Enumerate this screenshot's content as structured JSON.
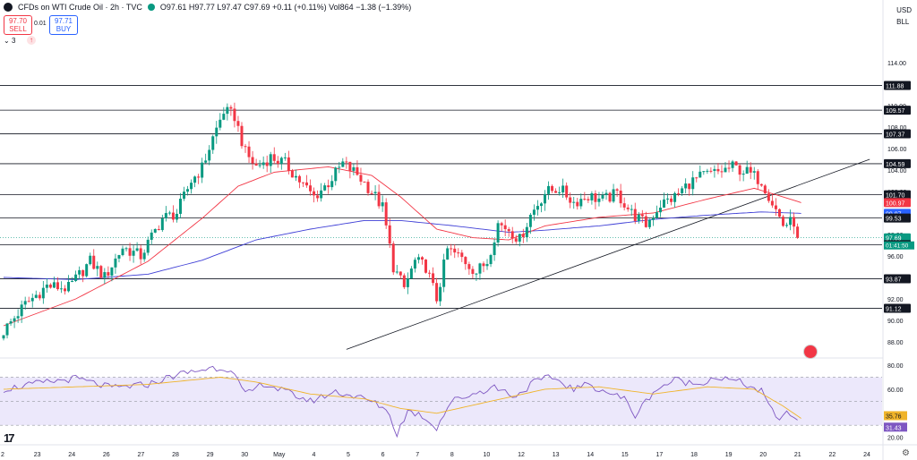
{
  "header": {
    "symbol": "CFDs on WTI Crude Oil · 2h · TVC",
    "ohlc": "O97.61 H97.77 L97.47 C97.69 +0.11 (+0.11%) Vol864 −1.38 (−1.39%)",
    "sell_price": "97.70",
    "sell_label": "SELL",
    "buy_price": "97.71",
    "buy_label": "BUY",
    "spread": "0.01",
    "indicator_count": "3",
    "currency": "USD",
    "unit": "BLL"
  },
  "colors": {
    "up": "#089981",
    "down": "#f23645",
    "ma_fast": "#f23645",
    "ma_slow": "#3f3fd6",
    "rsi": "#7e57c2",
    "rsi_ma": "#f0b42a",
    "band": "#ece8fb"
  },
  "chart_data": [
    {
      "type": "candlestick",
      "title": "",
      "ylim": [
        86.5,
        117.0
      ],
      "yticks": [
        "114.00",
        "112.00",
        "110.00",
        "108.00",
        "106.00",
        "104.00",
        "102.00",
        "100.00",
        "98.00",
        "96.00",
        "94.00",
        "92.00",
        "90.00",
        "88.00"
      ],
      "xticks": [
        "2",
        "23",
        "24",
        "26",
        "27",
        "28",
        "29",
        "30",
        "May",
        "4",
        "5",
        "6",
        "7",
        "8",
        "10",
        "12",
        "13",
        "14",
        "15",
        "17",
        "18",
        "19",
        "20",
        "21",
        "22",
        "24"
      ],
      "horizontal_levels": [
        111.88,
        109.57,
        107.37,
        104.59,
        101.7,
        99.53,
        97.05,
        93.87,
        91.12
      ],
      "price_labels": [
        {
          "value": 111.88,
          "text": "111.88",
          "style": "dark"
        },
        {
          "value": 109.57,
          "text": "109.57",
          "style": "dark"
        },
        {
          "value": 107.37,
          "text": "107.37",
          "style": "dark"
        },
        {
          "value": 104.59,
          "text": "104.59",
          "style": "dark"
        },
        {
          "value": 101.7,
          "text": "101.70",
          "style": "dark"
        },
        {
          "value": 100.97,
          "text": "100.97",
          "style": "red"
        },
        {
          "value": 99.97,
          "text": "99.97",
          "style": "blue"
        },
        {
          "value": 99.53,
          "text": "99.53",
          "style": "dark"
        },
        {
          "value": 97.69,
          "text": "97.69",
          "style": "teal"
        },
        {
          "value": 97.05,
          "text": "97.05",
          "style": "dark"
        },
        {
          "value": 93.87,
          "text": "93.87",
          "style": "dark"
        },
        {
          "value": 91.12,
          "text": "91.12",
          "style": "dark"
        }
      ],
      "countdown": "01:41:50",
      "trendline": {
        "from": {
          "bar": 95,
          "price": 87.3
        },
        "to": {
          "bar": 240,
          "price": 105.0
        }
      },
      "bars": 221,
      "close_path": [
        [
          0,
          89.0
        ],
        [
          6,
          91.5
        ],
        [
          12,
          93.2
        ],
        [
          18,
          93.0
        ],
        [
          24,
          95.5
        ],
        [
          28,
          94.0
        ],
        [
          33,
          96.8
        ],
        [
          38,
          96.0
        ],
        [
          44,
          99.5
        ],
        [
          48,
          100.0
        ],
        [
          52,
          103.0
        ],
        [
          55,
          104.2
        ],
        [
          58,
          107.0
        ],
        [
          61,
          109.5
        ],
        [
          64,
          109.0
        ],
        [
          67,
          105.6
        ],
        [
          70,
          104.3
        ],
        [
          74,
          105.2
        ],
        [
          78,
          104.6
        ],
        [
          82,
          103.0
        ],
        [
          86,
          101.5
        ],
        [
          90,
          102.8
        ],
        [
          94,
          104.6
        ],
        [
          98,
          103.6
        ],
        [
          102,
          102.0
        ],
        [
          105,
          100.5
        ],
        [
          108,
          95.0
        ],
        [
          111,
          93.0
        ],
        [
          114,
          95.5
        ],
        [
          117,
          95.0
        ],
        [
          120,
          92.0
        ],
        [
          123,
          96.6
        ],
        [
          127,
          95.8
        ],
        [
          131,
          94.5
        ],
        [
          134,
          95.5
        ],
        [
          137,
          99.0
        ],
        [
          140,
          98.5
        ],
        [
          143,
          97.5
        ],
        [
          146,
          99.8
        ],
        [
          150,
          101.9
        ],
        [
          154,
          102.3
        ],
        [
          158,
          101.0
        ],
        [
          162,
          101.6
        ],
        [
          166,
          101.2
        ],
        [
          170,
          101.8
        ],
        [
          174,
          100.0
        ],
        [
          178,
          98.9
        ],
        [
          182,
          100.8
        ],
        [
          186,
          101.5
        ],
        [
          190,
          102.8
        ],
        [
          194,
          103.5
        ],
        [
          198,
          103.8
        ],
        [
          202,
          104.3
        ],
        [
          206,
          103.8
        ],
        [
          210,
          103.0
        ],
        [
          213,
          101.0
        ],
        [
          216,
          98.9
        ],
        [
          219,
          99.2
        ],
        [
          220,
          97.69
        ]
      ],
      "ma_fast_path": [
        [
          0,
          89.5
        ],
        [
          20,
          92.0
        ],
        [
          40,
          95.5
        ],
        [
          55,
          99.5
        ],
        [
          65,
          102.5
        ],
        [
          75,
          103.8
        ],
        [
          90,
          104.3
        ],
        [
          102,
          103.5
        ],
        [
          110,
          101.5
        ],
        [
          120,
          98.5
        ],
        [
          130,
          97.7
        ],
        [
          140,
          97.5
        ],
        [
          150,
          98.8
        ],
        [
          165,
          99.6
        ],
        [
          180,
          100.0
        ],
        [
          195,
          101.3
        ],
        [
          208,
          102.3
        ],
        [
          215,
          101.6
        ],
        [
          221,
          100.97
        ]
      ],
      "ma_slow_path": [
        [
          0,
          94.0
        ],
        [
          20,
          93.8
        ],
        [
          40,
          94.3
        ],
        [
          55,
          95.6
        ],
        [
          70,
          97.5
        ],
        [
          85,
          98.5
        ],
        [
          100,
          99.3
        ],
        [
          110,
          99.3
        ],
        [
          125,
          98.8
        ],
        [
          140,
          98.2
        ],
        [
          150,
          98.4
        ],
        [
          165,
          98.8
        ],
        [
          180,
          99.4
        ],
        [
          195,
          99.8
        ],
        [
          210,
          100.1
        ],
        [
          221,
          99.97
        ]
      ]
    },
    {
      "type": "line",
      "title": "",
      "ylim": [
        16,
        86
      ],
      "yticks": [
        "80.00",
        "60.00",
        "40.00",
        "20.00"
      ],
      "guide_levels": [
        70,
        50,
        30
      ],
      "last_values": [
        {
          "value": 35.76,
          "text": "35.76",
          "style": "yellow"
        },
        {
          "value": 31.43,
          "text": "31.43",
          "style": "purple"
        }
      ],
      "rsi_path": [
        [
          0,
          60
        ],
        [
          10,
          65
        ],
        [
          20,
          69
        ],
        [
          30,
          61
        ],
        [
          40,
          64
        ],
        [
          48,
          72
        ],
        [
          58,
          78
        ],
        [
          63,
          77
        ],
        [
          67,
          55
        ],
        [
          72,
          65
        ],
        [
          78,
          58
        ],
        [
          85,
          50
        ],
        [
          92,
          58
        ],
        [
          100,
          52
        ],
        [
          106,
          44
        ],
        [
          109,
          23
        ],
        [
          112,
          42
        ],
        [
          116,
          38
        ],
        [
          120,
          28
        ],
        [
          124,
          50
        ],
        [
          130,
          56
        ],
        [
          136,
          62
        ],
        [
          142,
          54
        ],
        [
          147,
          66
        ],
        [
          152,
          70
        ],
        [
          158,
          60
        ],
        [
          162,
          64
        ],
        [
          167,
          58
        ],
        [
          172,
          52
        ],
        [
          175,
          38
        ],
        [
          180,
          58
        ],
        [
          186,
          68
        ],
        [
          192,
          64
        ],
        [
          197,
          70
        ],
        [
          204,
          66
        ],
        [
          210,
          58
        ],
        [
          214,
          36
        ],
        [
          218,
          40
        ],
        [
          221,
          31.43
        ]
      ],
      "rsi_ma_path": [
        [
          0,
          60
        ],
        [
          20,
          62
        ],
        [
          40,
          64
        ],
        [
          60,
          70
        ],
        [
          70,
          66
        ],
        [
          85,
          56
        ],
        [
          100,
          52
        ],
        [
          110,
          44
        ],
        [
          120,
          40
        ],
        [
          135,
          50
        ],
        [
          150,
          60
        ],
        [
          165,
          62
        ],
        [
          180,
          56
        ],
        [
          195,
          62
        ],
        [
          208,
          60
        ],
        [
          216,
          46
        ],
        [
          221,
          35.76
        ]
      ]
    }
  ]
}
